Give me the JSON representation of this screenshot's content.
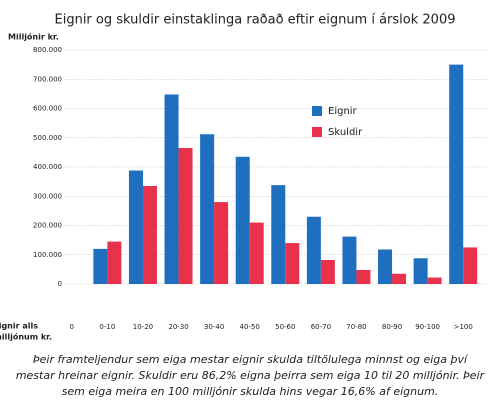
{
  "chart_data": {
    "type": "bar",
    "title": "Eignir og skuldir einstaklinga raðað eftir eignum í árslok 2009",
    "ylabel": "Milljónir kr.",
    "xlabel": [
      "Eignir alls",
      "í milljónum kr."
    ],
    "categories": [
      "0",
      "0-10",
      "10-20",
      "20-30",
      "30-40",
      "40-50",
      "50-60",
      "60-70",
      "70-80",
      "80-90",
      "90-100",
      ">100"
    ],
    "series": [
      {
        "name": "Eignir",
        "color": "#1f6fc1",
        "values": [
          null,
          120000,
          388000,
          648000,
          512000,
          435000,
          338000,
          230000,
          162000,
          118000,
          88000,
          750000
        ]
      },
      {
        "name": "Skuldir",
        "color": "#e8324b",
        "values": [
          null,
          145000,
          335000,
          465000,
          280000,
          210000,
          140000,
          82000,
          48000,
          35000,
          22000,
          125000
        ]
      }
    ],
    "ylim": [
      0,
      800000
    ],
    "yticks": [
      0,
      {
        "value": 100000,
        "label": "100.000"
      },
      {
        "value": 200000,
        "label": "200.000"
      },
      {
        "value": 300000,
        "label": "300.000"
      },
      {
        "value": 400000,
        "label": "400.000"
      },
      {
        "value": 500000,
        "label": "500.000"
      },
      {
        "value": 600000,
        "label": "600.000"
      },
      {
        "value": 700000,
        "label": "700.000"
      },
      {
        "value": 800000,
        "label": "800.000"
      }
    ],
    "grid": true,
    "legend": "center",
    "caption": [
      "Þeir framteljendur sem eiga mestar eignir skulda tiltölulega minnst og eiga því",
      "mestar hreinar eignir. Skuldir eru 86,2% eigna þeirra sem eiga 10 til 20 milljónir. Þeir",
      "sem eiga meira en 100 milljónir skulda hins vegar 16,6% af eignum."
    ]
  }
}
